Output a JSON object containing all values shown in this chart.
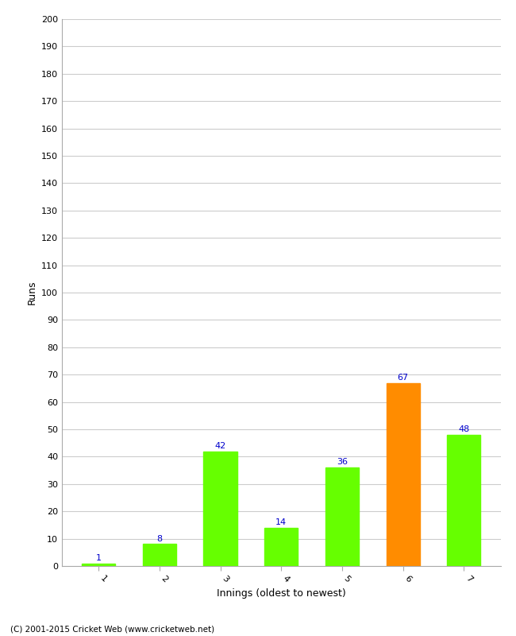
{
  "categories": [
    "1",
    "2",
    "3",
    "4",
    "5",
    "6",
    "7"
  ],
  "values": [
    1,
    8,
    42,
    14,
    36,
    67,
    48
  ],
  "bar_colors": [
    "#66ff00",
    "#66ff00",
    "#66ff00",
    "#66ff00",
    "#66ff00",
    "#ff8c00",
    "#66ff00"
  ],
  "xlabel": "Innings (oldest to newest)",
  "ylabel": "Runs",
  "ylim": [
    0,
    200
  ],
  "ytick_step": 10,
  "value_color": "#0000cc",
  "value_fontsize": 8,
  "label_fontsize": 9,
  "tick_fontsize": 8,
  "footer": "(C) 2001-2015 Cricket Web (www.cricketweb.net)",
  "background_color": "#ffffff",
  "grid_color": "#cccccc",
  "bar_width": 0.55
}
